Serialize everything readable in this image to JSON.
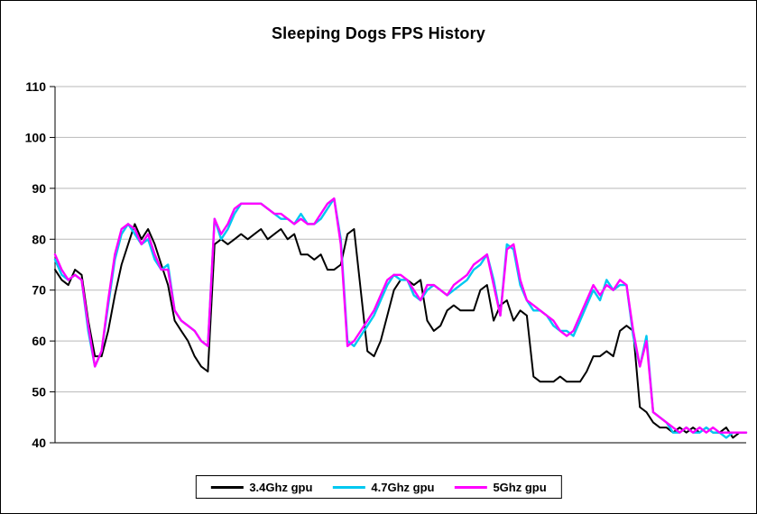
{
  "chart_data": {
    "type": "line",
    "title": "Sleeping Dogs FPS History",
    "xlabel": "",
    "ylabel": "",
    "ylim": [
      40,
      110
    ],
    "yticks": [
      40,
      50,
      60,
      70,
      80,
      90,
      100,
      110
    ],
    "grid": true,
    "x_axis_labels_visible": false,
    "legend_position": "bottom-center",
    "gridline_color": "#b9b9b9",
    "axis_color": "#000000",
    "series": [
      {
        "name": "3.4Ghz gpu",
        "color": "#000000",
        "values": [
          74,
          72,
          71,
          74,
          73,
          64,
          57,
          57,
          62,
          69,
          75,
          79,
          83,
          80,
          82,
          79,
          75,
          71,
          64,
          62,
          60,
          57,
          55,
          54,
          79,
          80,
          79,
          80,
          81,
          80,
          81,
          82,
          80,
          81,
          82,
          80,
          81,
          77,
          77,
          76,
          77,
          74,
          74,
          75,
          81,
          82,
          70,
          58,
          57,
          60,
          65,
          70,
          72,
          72,
          71,
          72,
          64,
          62,
          63,
          66,
          67,
          66,
          66,
          66,
          70,
          71,
          64,
          67,
          68,
          64,
          66,
          65,
          53,
          52,
          52,
          52,
          53,
          52,
          52,
          52,
          54,
          57,
          57,
          58,
          57,
          62,
          63,
          62,
          47,
          46,
          44,
          43,
          43,
          42,
          43,
          42,
          43,
          42,
          43,
          42,
          42,
          43,
          41,
          42,
          42
        ]
      },
      {
        "name": "4.7Ghz gpu",
        "color": "#00C8F0",
        "values": [
          76,
          73,
          72,
          73,
          72,
          62,
          55,
          58,
          67,
          76,
          81,
          83,
          81,
          79,
          80,
          76,
          74,
          75,
          66,
          64,
          63,
          62,
          60,
          59,
          84,
          80,
          82,
          85,
          87,
          87,
          87,
          87,
          86,
          85,
          84,
          84,
          83,
          85,
          83,
          83,
          84,
          86,
          88,
          80,
          60,
          59,
          61,
          63,
          65,
          68,
          71,
          73,
          72,
          72,
          69,
          68,
          70,
          71,
          70,
          69,
          70,
          71,
          72,
          74,
          75,
          77,
          72,
          65,
          79,
          78,
          71,
          68,
          66,
          66,
          65,
          63,
          62,
          62,
          61,
          64,
          67,
          70,
          68,
          72,
          70,
          71,
          71,
          61,
          55,
          61,
          46,
          45,
          44,
          42,
          42,
          43,
          42,
          42,
          43,
          42,
          42,
          41,
          42,
          42,
          42
        ]
      },
      {
        "name": "5Ghz gpu",
        "color": "#FF00FF",
        "values": [
          77,
          74,
          72,
          73,
          72,
          63,
          55,
          58,
          68,
          77,
          82,
          83,
          82,
          79,
          81,
          77,
          74,
          74,
          66,
          64,
          63,
          62,
          60,
          59,
          84,
          81,
          83,
          86,
          87,
          87,
          87,
          87,
          86,
          85,
          85,
          84,
          83,
          84,
          83,
          83,
          85,
          87,
          88,
          79,
          59,
          60,
          62,
          64,
          66,
          69,
          72,
          73,
          73,
          72,
          70,
          68,
          71,
          71,
          70,
          69,
          71,
          72,
          73,
          75,
          76,
          77,
          71,
          65,
          78,
          79,
          72,
          68,
          67,
          66,
          65,
          64,
          62,
          61,
          62,
          65,
          68,
          71,
          69,
          71,
          70,
          72,
          71,
          62,
          55,
          60,
          46,
          45,
          44,
          43,
          42,
          43,
          42,
          43,
          42,
          43,
          42,
          42,
          42,
          42,
          42
        ]
      }
    ]
  }
}
